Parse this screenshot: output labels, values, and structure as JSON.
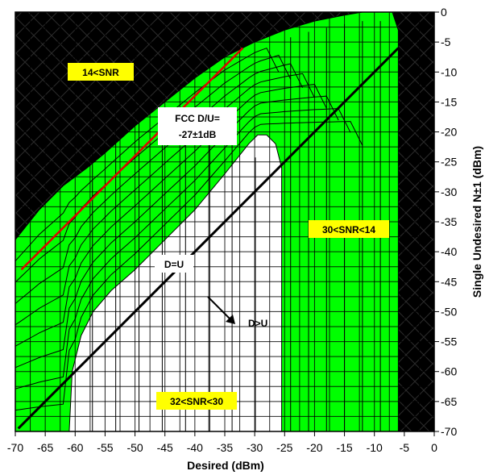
{
  "chart_data": {
    "type": "contour",
    "title": "",
    "xlabel": "Desired (dBm)",
    "ylabel": "Single Undesired N±1 (dBm)",
    "xlim": [
      -70,
      0
    ],
    "ylim": [
      -70,
      0
    ],
    "x_ticks": [
      -70,
      -65,
      -60,
      -55,
      -50,
      -45,
      -40,
      -35,
      -30,
      -25,
      -20,
      -15,
      -10,
      -5,
      0
    ],
    "y_ticks": [
      -70,
      -65,
      -60,
      -55,
      -50,
      -45,
      -40,
      -35,
      -30,
      -25,
      -20,
      -15,
      -10,
      -5,
      0
    ],
    "grid": true,
    "region_colors": {
      "snr_above_30": "#ffffff",
      "snr_14_to_30": "#00ff00",
      "snr_below_14": "#000000"
    },
    "regions": [
      {
        "label": "14<SNR",
        "color": "#000000",
        "boundary": [
          [
            -70,
            -38
          ],
          [
            -66,
            -33
          ],
          [
            -62,
            -29
          ],
          [
            -58,
            -26
          ],
          [
            -55,
            -23.5
          ],
          [
            -50,
            -19
          ],
          [
            -45,
            -15
          ],
          [
            -40,
            -11
          ],
          [
            -35,
            -7.5
          ],
          [
            -30,
            -5
          ],
          [
            -25,
            -3
          ],
          [
            -20,
            -1.5
          ],
          [
            -15,
            -0.5
          ],
          [
            -12,
            0
          ]
        ]
      },
      {
        "label": "30<SNR<14",
        "color": "#00ff00",
        "boundary": [
          [
            -70,
            -38
          ],
          [
            -66,
            -33
          ],
          [
            -62,
            -29
          ],
          [
            -58,
            -26
          ],
          [
            -55,
            -23.5
          ],
          [
            -50,
            -19
          ],
          [
            -45,
            -15
          ],
          [
            -40,
            -11
          ],
          [
            -35,
            -7.5
          ],
          [
            -30,
            -5
          ],
          [
            -25,
            -3
          ],
          [
            -20,
            -1.5
          ],
          [
            -15,
            -0.5
          ],
          [
            -12,
            0
          ],
          [
            -7,
            0
          ],
          [
            -6,
            -3
          ],
          [
            -6,
            -70
          ],
          [
            -70,
            -70
          ]
        ]
      },
      {
        "label": "32<SNR<30",
        "color": "#ffffff",
        "boundary": [
          [
            -61,
            -70
          ],
          [
            -60.5,
            -60
          ],
          [
            -59,
            -54
          ],
          [
            -57,
            -50
          ],
          [
            -54,
            -46.5
          ],
          [
            -50,
            -43
          ],
          [
            -45,
            -38
          ],
          [
            -40,
            -33
          ],
          [
            -35,
            -27
          ],
          [
            -31,
            -22
          ],
          [
            -29.5,
            -20.5
          ],
          [
            -28,
            -20.5
          ],
          [
            -26.5,
            -22
          ],
          [
            -25.5,
            -26
          ],
          [
            -25.5,
            -70
          ]
        ]
      }
    ],
    "lines": [
      {
        "label": "D=U",
        "color": "#000000",
        "points": [
          [
            -69.5,
            -69.5
          ],
          [
            -6,
            -6
          ]
        ]
      },
      {
        "label": "FCC D/U= -27±1dB",
        "color": "#e00000",
        "points": [
          [
            -69,
            -43
          ],
          [
            -32,
            -6
          ]
        ]
      }
    ],
    "annotations": {
      "snr_black": "14<SNR",
      "fcc_line1": "FCC D/U=",
      "fcc_line2": "-27±1dB",
      "snr_green": "30<SNR<14",
      "d_eq_u": "D=U",
      "d_gt_u": "D>U",
      "snr_white": "32<SNR<30"
    }
  }
}
